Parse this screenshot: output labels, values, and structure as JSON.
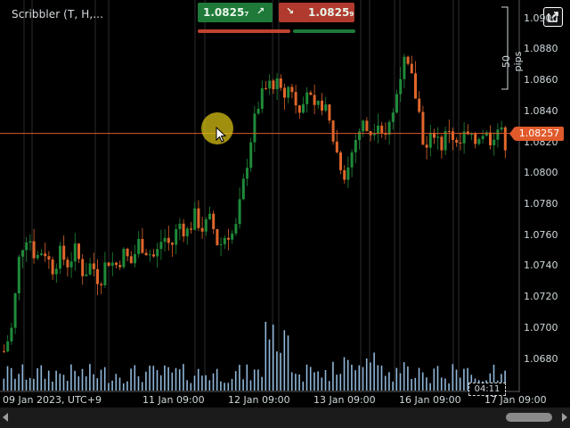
{
  "chart": {
    "title": "Scribbler (T, H,...",
    "buy_price": "1.0825₇",
    "sell_price": "1.0825₉",
    "buy_arrow": "↗",
    "sell_arrow": "↘",
    "pips_label": "50 pips",
    "current_price": "1.08257",
    "countdown": "04:11",
    "y_ticks": [
      "1.0900",
      "1.0880",
      "1.0860",
      "1.0840",
      "1.0820",
      "1.0800",
      "1.0780",
      "1.0760",
      "1.0740",
      "1.0720",
      "1.0700",
      "1.0680"
    ],
    "x_ticks": [
      "09 Jan 2023, UTC+9",
      "11 Jan 09:00",
      "12 Jan 09:00",
      "13 Jan 09:00",
      "16 Jan 09:00",
      "17 Jan 09:00"
    ],
    "colors": {
      "up": "#1f8a3a",
      "down": "#e0662b",
      "volume": "#8fb6d8",
      "price_line": "#e05a2b",
      "grid": "#4a4a4a"
    },
    "icons": [
      "popout-icon",
      "cursor-arrow-icon"
    ]
  },
  "chart_data": {
    "type": "candlestick",
    "symbol_label": "Scribbler (T, H,...",
    "ylim": [
      1.067,
      1.0905
    ],
    "y_ticks": [
      1.09,
      1.088,
      1.086,
      1.084,
      1.082,
      1.08,
      1.078,
      1.076,
      1.074,
      1.072,
      1.07,
      1.068
    ],
    "x_tick_labels": [
      "09 Jan 2023, UTC+9",
      "11 Jan 09:00",
      "12 Jan 09:00",
      "13 Jan 09:00",
      "16 Jan 09:00",
      "17 Jan 09:00"
    ],
    "current_price": 1.08257,
    "close_path": [
      [
        1.0685,
        1.07
      ],
      [
        1.07,
        1.075
      ],
      [
        1.075,
        1.0762
      ],
      [
        1.0762,
        1.0745
      ],
      [
        1.0745,
        1.0752
      ],
      [
        1.0752,
        1.0738
      ],
      [
        1.0738,
        1.0748
      ],
      [
        1.0748,
        1.0742
      ],
      [
        1.0742,
        1.075
      ],
      [
        1.075,
        1.0735
      ],
      [
        1.0735,
        1.0742
      ],
      [
        1.0742,
        1.073
      ],
      [
        1.073,
        1.0745
      ],
      [
        1.0745,
        1.074
      ],
      [
        1.074,
        1.0748
      ],
      [
        1.0748,
        1.0742
      ],
      [
        1.0742,
        1.0756
      ],
      [
        1.0756,
        1.075
      ],
      [
        1.075,
        1.0745
      ],
      [
        1.0745,
        1.076
      ],
      [
        1.076,
        1.0752
      ],
      [
        1.0752,
        1.0768
      ],
      [
        1.0768,
        1.0762
      ],
      [
        1.0762,
        1.0772
      ],
      [
        1.0772,
        1.0764
      ],
      [
        1.0764,
        1.077
      ],
      [
        1.077,
        1.0752
      ],
      [
        1.0752,
        1.0762
      ],
      [
        1.0762,
        1.076
      ],
      [
        1.076,
        1.079
      ],
      [
        1.079,
        1.0822
      ],
      [
        1.0822,
        1.0845
      ],
      [
        1.0845,
        1.0855
      ],
      [
        1.0855,
        1.086
      ],
      [
        1.086,
        1.0848
      ],
      [
        1.0848,
        1.0858
      ],
      [
        1.0858,
        1.0842
      ],
      [
        1.0842,
        1.0856
      ],
      [
        1.0856,
        1.0838
      ],
      [
        1.0838,
        1.0846
      ],
      [
        1.0846,
        1.083
      ],
      [
        1.083,
        1.081
      ],
      [
        1.081,
        1.0798
      ],
      [
        1.0798,
        1.082
      ],
      [
        1.082,
        1.0832
      ],
      [
        1.0832,
        1.0826
      ],
      [
        1.0826,
        1.0836
      ],
      [
        1.0836,
        1.0822
      ],
      [
        1.0822,
        1.084
      ],
      [
        1.084,
        1.0872
      ],
      [
        1.0872,
        1.0865
      ],
      [
        1.0865,
        1.0845
      ],
      [
        1.0845,
        1.0812
      ],
      [
        1.0812,
        1.0828
      ],
      [
        1.0828,
        1.0818
      ],
      [
        1.0818,
        1.083
      ],
      [
        1.083,
        1.0815
      ],
      [
        1.0815,
        1.0825
      ],
      [
        1.0825,
        1.0818
      ],
      [
        1.0818,
        1.0828
      ],
      [
        1.0828,
        1.0822
      ],
      [
        1.0822,
        1.083
      ],
      [
        1.083,
        1.082
      ],
      [
        1.082,
        1.0826
      ]
    ]
  }
}
